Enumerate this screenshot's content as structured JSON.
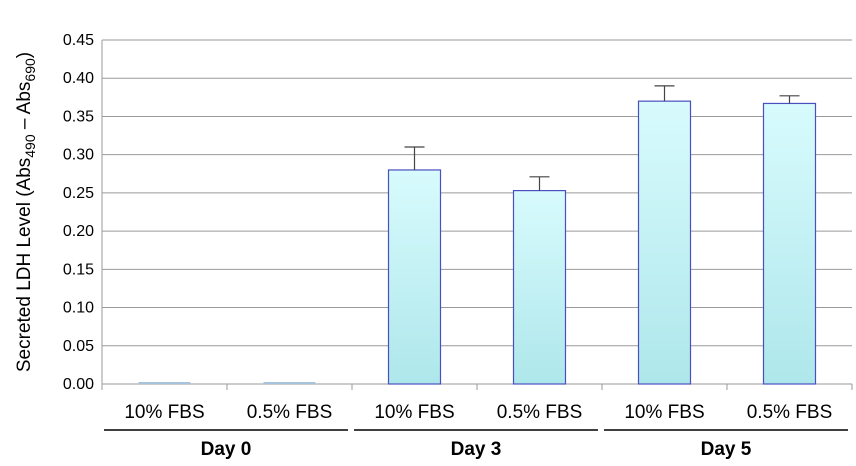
{
  "chart_data": {
    "type": "bar",
    "title": "",
    "ylabel": {
      "pre": "Secreted LDH Level (Abs",
      "sub1": "490",
      "mid": " – Abs",
      "sub2": "690",
      "post": ")"
    },
    "ylim": [
      0,
      0.45
    ],
    "yticks": [
      "0.00",
      "0.05",
      "0.10",
      "0.15",
      "0.20",
      "0.25",
      "0.30",
      "0.35",
      "0.40",
      "0.45"
    ],
    "grid": true,
    "categories": [
      "10% FBS",
      "0.5% FBS",
      "10% FBS",
      "0.5% FBS",
      "10% FBS",
      "0.5% FBS"
    ],
    "groups": [
      {
        "label": "Day 0",
        "members": [
          0,
          1
        ]
      },
      {
        "label": "Day 3",
        "members": [
          2,
          3
        ]
      },
      {
        "label": "Day 5",
        "members": [
          4,
          5
        ]
      }
    ],
    "values": [
      0.002,
      0.002,
      0.28,
      0.253,
      0.37,
      0.367
    ],
    "errors": [
      0,
      0,
      0.03,
      0.018,
      0.02,
      0.01
    ],
    "colors": {
      "bar_top": "#d8fbfd",
      "bar_bottom": "#aee7eb",
      "bar_stroke": "#4a4fc0",
      "grid": "#9a9a9a",
      "error": "#444444"
    }
  }
}
